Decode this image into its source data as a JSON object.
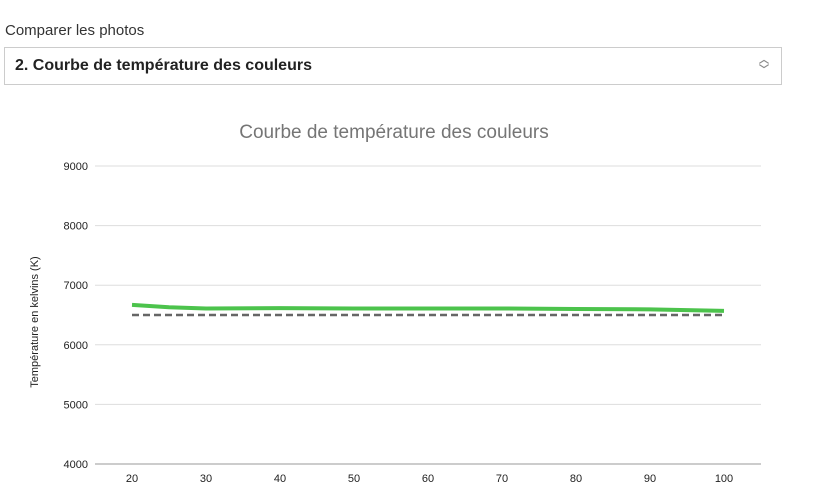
{
  "label": "Comparer les photos",
  "select": {
    "value": "2. Courbe de température des couleurs",
    "icon": "chevron-up-down-icon"
  },
  "chart_data": {
    "type": "line",
    "title": "Courbe de température des couleurs",
    "ylabel": "Température en kelvins (K)",
    "xlabel": "",
    "ylim": [
      4000,
      9000
    ],
    "xlim": [
      15,
      105
    ],
    "yticks": [
      4000,
      5000,
      6000,
      7000,
      8000,
      9000
    ],
    "xticks": [
      20,
      30,
      40,
      50,
      60,
      70,
      80,
      90,
      100
    ],
    "grid": true,
    "series": [
      {
        "color": "#4cc34c",
        "style": "solid",
        "x": [
          20,
          25,
          30,
          40,
          50,
          60,
          70,
          80,
          90,
          100
        ],
        "y": [
          6670,
          6630,
          6610,
          6615,
          6610,
          6610,
          6610,
          6600,
          6595,
          6570
        ]
      },
      {
        "color": "#666666",
        "style": "dashed",
        "x": [
          20,
          100
        ],
        "y": [
          6500,
          6500
        ]
      }
    ]
  }
}
